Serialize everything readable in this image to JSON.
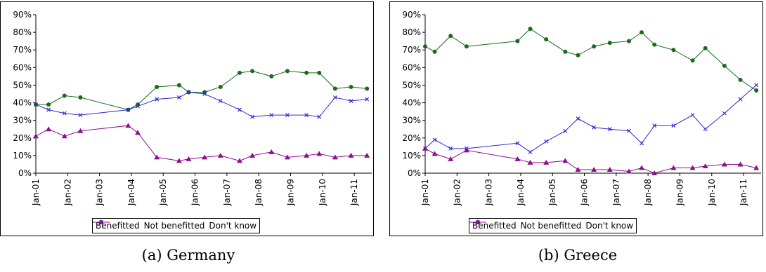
{
  "chart_data": [
    {
      "type": "line",
      "caption": "(a) Germany",
      "x_ticks": [
        "Jan-01",
        "Jan-02",
        "Jan-03",
        "Jan-04",
        "Jan-05",
        "Jan-06",
        "Jan-07",
        "Jan-08",
        "Jan-09",
        "Jan-10",
        "Jan-11"
      ],
      "ylim": [
        0,
        90
      ],
      "y_ticks": [
        "0%",
        "10%",
        "20%",
        "30%",
        "40%",
        "50%",
        "60%",
        "70%",
        "80%",
        "90%"
      ],
      "grid": false,
      "legend_placement": "bottom-center",
      "series": [
        {
          "name": "Benefitted",
          "color": "#1a6b1a",
          "marker": "circle",
          "x": [
            2001.0,
            2001.4,
            2001.9,
            2002.4,
            2003.9,
            2004.2,
            2004.8,
            2005.5,
            2005.8,
            2006.3,
            2006.8,
            2007.4,
            2007.8,
            2008.4,
            2008.9,
            2009.5,
            2009.9,
            2010.4,
            2010.9,
            2011.4
          ],
          "values": [
            39,
            39,
            44,
            43,
            36,
            39,
            49,
            50,
            46,
            46,
            49,
            57,
            58,
            55,
            58,
            57,
            57,
            48,
            49,
            48
          ]
        },
        {
          "name": "Not benefitted",
          "color": "#2b2bd6",
          "marker": "x",
          "x": [
            2001.0,
            2001.4,
            2001.9,
            2002.4,
            2003.9,
            2004.2,
            2004.8,
            2005.5,
            2005.8,
            2006.3,
            2006.8,
            2007.4,
            2007.8,
            2008.4,
            2008.9,
            2009.5,
            2009.9,
            2010.4,
            2010.9,
            2011.4
          ],
          "values": [
            39,
            36,
            34,
            33,
            36,
            38,
            42,
            43,
            46,
            45,
            41,
            36,
            32,
            33,
            33,
            33,
            32,
            43,
            41,
            42
          ]
        },
        {
          "name": "Don't know",
          "color": "#8b0f8b",
          "marker": "triangle",
          "x": [
            2001.0,
            2001.4,
            2001.9,
            2002.4,
            2003.9,
            2004.2,
            2004.8,
            2005.5,
            2005.8,
            2006.3,
            2006.8,
            2007.4,
            2007.8,
            2008.4,
            2008.9,
            2009.5,
            2009.9,
            2010.4,
            2010.9,
            2011.4
          ],
          "values": [
            21,
            25,
            21,
            24,
            27,
            23,
            9,
            7,
            8,
            9,
            10,
            7,
            10,
            12,
            9,
            10,
            11,
            9,
            10,
            10
          ]
        }
      ]
    },
    {
      "type": "line",
      "caption": "(b) Greece",
      "x_ticks": [
        "Jan-01",
        "Jan-02",
        "Jan-03",
        "Jan-04",
        "Jan-05",
        "Jan-06",
        "Jan-07",
        "Jan-08",
        "Jan-09",
        "Jan-10",
        "Jan-11"
      ],
      "ylim": [
        0,
        90
      ],
      "y_ticks": [
        "0%",
        "10%",
        "20%",
        "30%",
        "40%",
        "50%",
        "60%",
        "70%",
        "80%",
        "90%"
      ],
      "grid": false,
      "legend_placement": "bottom-center",
      "series": [
        {
          "name": "Benefitted",
          "color": "#1a6b1a",
          "marker": "circle",
          "x": [
            2001.0,
            2001.3,
            2001.8,
            2002.3,
            2003.9,
            2004.3,
            2004.8,
            2005.4,
            2005.8,
            2006.3,
            2006.8,
            2007.4,
            2007.8,
            2008.2,
            2008.8,
            2009.4,
            2009.8,
            2010.4,
            2010.9,
            2011.4
          ],
          "values": [
            72,
            69,
            78,
            72,
            75,
            82,
            76,
            69,
            67,
            72,
            74,
            75,
            80,
            73,
            70,
            64,
            71,
            61,
            53,
            47
          ]
        },
        {
          "name": "Not benefitted",
          "color": "#2b2bd6",
          "marker": "x",
          "x": [
            2001.0,
            2001.3,
            2001.8,
            2002.3,
            2003.9,
            2004.3,
            2004.8,
            2005.4,
            2005.8,
            2006.3,
            2006.8,
            2007.4,
            2007.8,
            2008.2,
            2008.8,
            2009.4,
            2009.8,
            2010.4,
            2010.9,
            2011.4
          ],
          "values": [
            14,
            19,
            14,
            14,
            17,
            12,
            18,
            24,
            31,
            26,
            25,
            24,
            17,
            27,
            27,
            33,
            25,
            34,
            42,
            50
          ]
        },
        {
          "name": "Don't know",
          "color": "#8b0f8b",
          "marker": "triangle",
          "x": [
            2001.0,
            2001.3,
            2001.8,
            2002.3,
            2003.9,
            2004.3,
            2004.8,
            2005.4,
            2005.8,
            2006.3,
            2006.8,
            2007.4,
            2007.8,
            2008.2,
            2008.8,
            2009.4,
            2009.8,
            2010.4,
            2010.9,
            2011.4
          ],
          "values": [
            14,
            11,
            8,
            13,
            8,
            6,
            6,
            7,
            2,
            2,
            2,
            1,
            3,
            0,
            3,
            3,
            4,
            5,
            5,
            3
          ]
        }
      ]
    }
  ]
}
